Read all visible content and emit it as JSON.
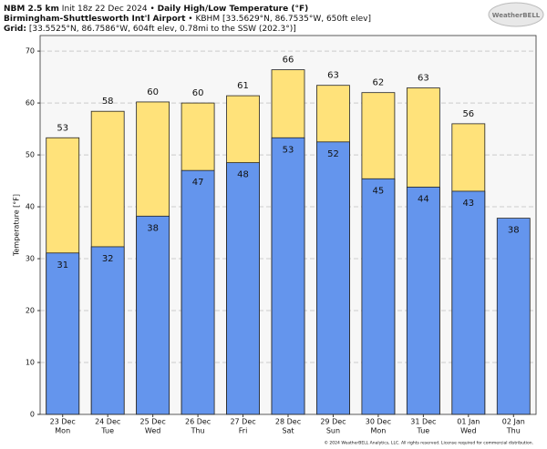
{
  "header": {
    "model": "NBM 2.5 km",
    "init": "Init 18z 22 Dec 2024",
    "sep": "•",
    "title": "Daily High/Low Temperature (°F)",
    "station": "Birmingham-Shuttlesworth Int'l Airport",
    "station_info": "KBHM [33.5629°N, 86.7535°W, 650ft elev]",
    "grid_label": "Grid:",
    "grid_info": "[33.5525°N, 86.7586°W, 604ft elev, 0.78mi to the SSW (202.3°)]",
    "logo": "WeatherBELL"
  },
  "chart_data": {
    "type": "bar",
    "y_label": "Temperature [°F]",
    "categories": [
      "23 Dec",
      "24 Dec",
      "25 Dec",
      "26 Dec",
      "27 Dec",
      "28 Dec",
      "29 Dec",
      "30 Dec",
      "31 Dec",
      "01 Jan",
      "02 Jan"
    ],
    "weekdays": [
      "Mon",
      "Tue",
      "Wed",
      "Thu",
      "Fri",
      "Sat",
      "Sun",
      "Mon",
      "Tue",
      "Wed",
      "Thu"
    ],
    "series": [
      {
        "name": "High",
        "color": "#ffe27a",
        "values": [
          53.3,
          58.4,
          60.2,
          60.0,
          61.4,
          66.4,
          63.4,
          62.0,
          62.9,
          56.0,
          null
        ],
        "value_labels": [
          "53",
          "58",
          "60",
          "60",
          "61",
          "66",
          "63",
          "62",
          "63",
          "56",
          null
        ]
      },
      {
        "name": "Low",
        "color": "#6495ed",
        "values": [
          31.1,
          32.3,
          38.2,
          47.0,
          48.5,
          53.3,
          52.5,
          45.4,
          43.8,
          43.0,
          37.8
        ],
        "value_labels": [
          "31",
          "32",
          "38",
          "47",
          "48",
          "53",
          "52",
          "45",
          "44",
          "43",
          "38"
        ]
      }
    ],
    "ylim": [
      0,
      73
    ],
    "yticks": [
      0,
      10,
      20,
      30,
      40,
      50,
      60,
      70
    ],
    "grid": true,
    "footer": "© 2024 WeatherBELL Analytics, LLC. All rights reserved. License required for commercial distribution."
  }
}
